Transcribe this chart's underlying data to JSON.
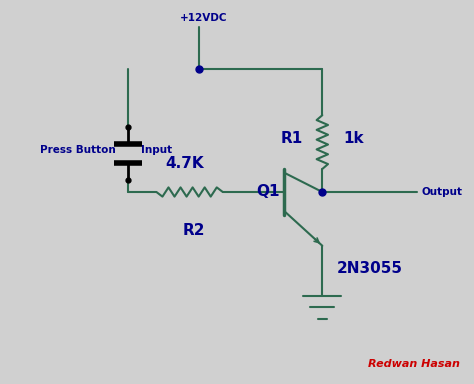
{
  "background_color": "#d0d0d0",
  "wire_color": "#2d6a4f",
  "label_color": "#00008B",
  "junction_color": "#00008B",
  "author_color": "#cc0000",
  "voltage_label": "+12VDC",
  "input_label": "Input",
  "output_label": "Output",
  "press_button_label": "Press Button",
  "r1_label": "R1",
  "r1_value": "1k",
  "r2_label": "R2",
  "r2_value": "4.7K",
  "q1_label": "Q1",
  "transistor_label": "2N3055",
  "author_label": "Redwan Hasan",
  "figsize": [
    4.74,
    3.84
  ],
  "dpi": 100
}
